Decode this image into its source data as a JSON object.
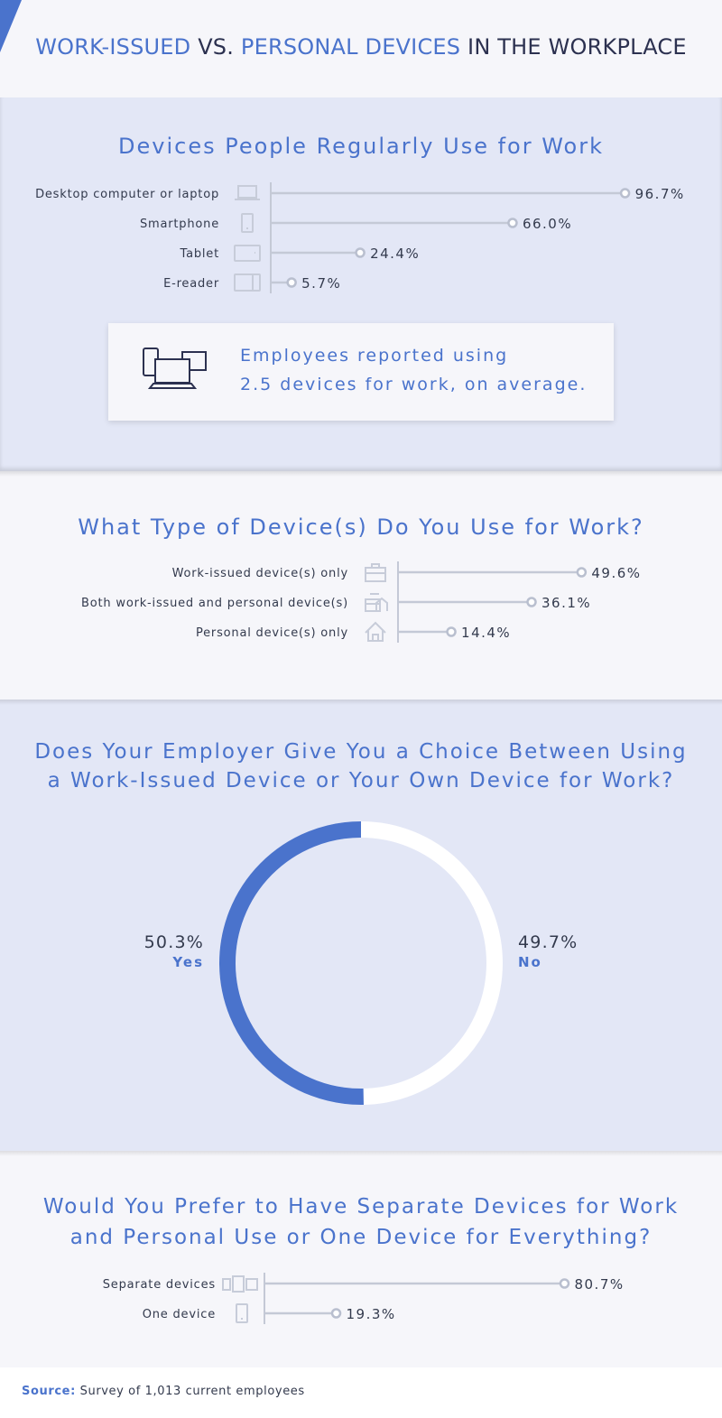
{
  "header": {
    "title_part1": "WORK-ISSUED",
    "title_part2": " VS. ",
    "title_part3": "PERSONAL DEVICES",
    "title_part4": " IN THE WORKPLACE"
  },
  "colors": {
    "accent": "#4a73cc",
    "dark_text": "#2c3150",
    "section_blue": "#e3e7f6",
    "section_light": "#f6f6fa",
    "bar_line": "#c4c9d6"
  },
  "chart_data": [
    {
      "type": "bar",
      "title": "Devices People Regularly Use for Work",
      "unit": "%",
      "categories": [
        "Desktop computer or laptop",
        "Smartphone",
        "Tablet",
        "E-reader"
      ],
      "values": [
        96.7,
        66.0,
        24.4,
        5.7
      ],
      "labels": [
        "96.7%",
        "66.0%",
        "24.4%",
        "5.7%"
      ],
      "icons": [
        "laptop-icon",
        "smartphone-icon",
        "tablet-icon",
        "ereader-icon"
      ]
    },
    {
      "type": "bar",
      "title": "What Type of Device(s) Do You Use for Work?",
      "unit": "%",
      "categories": [
        "Work-issued device(s) only",
        "Both work-issued and personal device(s)",
        "Personal device(s) only"
      ],
      "values": [
        49.6,
        36.1,
        14.4
      ],
      "labels": [
        "49.6%",
        "36.1%",
        "14.4%"
      ],
      "icons": [
        "briefcase-icon",
        "briefcase-home-icon",
        "house-icon"
      ]
    },
    {
      "type": "pie",
      "title_line1": "Does Your Employer Give You a Choice Between Using",
      "title_line2": "a Work-Issued Device or Your Own Device for Work?",
      "categories": [
        "Yes",
        "No"
      ],
      "values": [
        50.3,
        49.7
      ],
      "labels": [
        "50.3%",
        "49.7%"
      ],
      "colors": [
        "#4a73cc",
        "#ffffff"
      ]
    },
    {
      "type": "bar",
      "title_line1": "Would You Prefer to Have Separate Devices for Work",
      "title_line2": "and Personal Use or One Device for Everything?",
      "unit": "%",
      "categories": [
        "Separate devices",
        "One device"
      ],
      "values": [
        80.7,
        19.3
      ],
      "labels": [
        "80.7%",
        "19.3%"
      ],
      "icons": [
        "multiple-devices-icon",
        "single-device-icon"
      ]
    }
  ],
  "callout": {
    "line1": "Employees reported using",
    "line2": "2.5 devices for work, on average.",
    "icon": "devices-icon"
  },
  "footer": {
    "source_label": "Source:",
    "source_text": " Survey of 1,013 current employees"
  }
}
